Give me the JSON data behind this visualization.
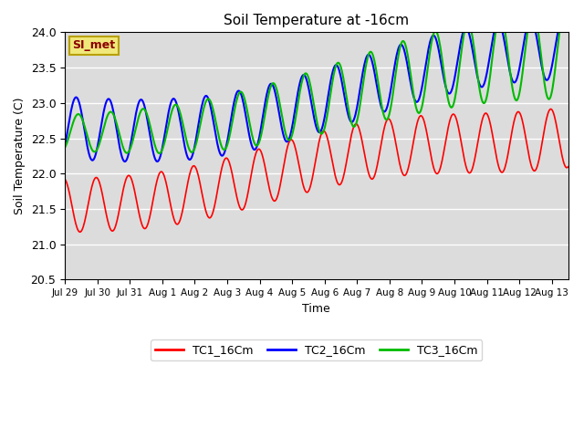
{
  "title": "Soil Temperature at -16cm",
  "xlabel": "Time",
  "ylabel": "Soil Temperature (C)",
  "ylim": [
    20.5,
    24.0
  ],
  "background_color": "#ffffff",
  "plot_bg_color": "#dcdcdc",
  "grid_color": "#ffffff",
  "legend_labels": [
    "TC1_16Cm",
    "TC2_16Cm",
    "TC3_16Cm"
  ],
  "legend_colors": [
    "#ff0000",
    "#0000ff",
    "#00bb00"
  ],
  "watermark_text": "SI_met",
  "xtick_labels": [
    "Jul 29",
    "Jul 30",
    "Jul 31",
    "Aug 1",
    "Aug 2",
    "Aug 3",
    "Aug 4",
    "Aug 5",
    "Aug 6",
    "Aug 7",
    "Aug 8",
    "Aug 9",
    "Aug 10",
    "Aug 11",
    "Aug 12",
    "Aug 13"
  ],
  "xtick_positions": [
    0,
    1,
    2,
    3,
    4,
    5,
    6,
    7,
    8,
    9,
    10,
    11,
    12,
    13,
    14,
    15
  ],
  "num_days": 15.5,
  "pts_per_day": 48
}
